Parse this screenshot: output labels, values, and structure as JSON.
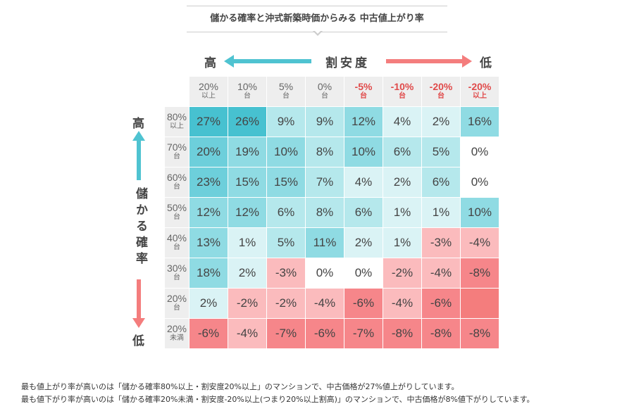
{
  "title": "儲かる確率と沖式新築時価からみる 中古値上がり率",
  "x_axis": {
    "label": "割安度",
    "high": "高",
    "low": "低"
  },
  "y_axis": {
    "label": "儲かる確率",
    "high": "高",
    "low": "低"
  },
  "colors": {
    "teal": "#4fc3d1",
    "red": "#f47d7d"
  },
  "chart_data": {
    "type": "heatmap",
    "title": "儲かる確率と沖式新築時価からみる 中古値上がり率",
    "columns": [
      {
        "main": "20%",
        "sub": "以上",
        "neg": false
      },
      {
        "main": "10%",
        "sub": "台",
        "neg": false
      },
      {
        "main": "5%",
        "sub": "台",
        "neg": false
      },
      {
        "main": "0%",
        "sub": "台",
        "neg": false
      },
      {
        "main": "-5%",
        "sub": "台",
        "neg": true
      },
      {
        "main": "-10%",
        "sub": "台",
        "neg": true
      },
      {
        "main": "-20%",
        "sub": "台",
        "neg": true
      },
      {
        "main": "-20%",
        "sub": "以上",
        "neg": true
      }
    ],
    "rows": [
      {
        "main": "80%",
        "sub": "以上"
      },
      {
        "main": "70%",
        "sub": "台"
      },
      {
        "main": "60%",
        "sub": "台"
      },
      {
        "main": "50%",
        "sub": "台"
      },
      {
        "main": "40%",
        "sub": "台"
      },
      {
        "main": "30%",
        "sub": "台"
      },
      {
        "main": "20%",
        "sub": "台"
      },
      {
        "main": "20%",
        "sub": "未満"
      }
    ],
    "values": [
      [
        27,
        26,
        9,
        9,
        12,
        4,
        2,
        16
      ],
      [
        20,
        19,
        10,
        8,
        10,
        6,
        5,
        0
      ],
      [
        23,
        15,
        15,
        7,
        4,
        2,
        6,
        0
      ],
      [
        12,
        12,
        6,
        8,
        6,
        1,
        1,
        10
      ],
      [
        13,
        1,
        5,
        11,
        2,
        1,
        -3,
        -4
      ],
      [
        18,
        2,
        -3,
        0,
        0,
        -2,
        -4,
        -8
      ],
      [
        2,
        -2,
        -2,
        -4,
        -6,
        -4,
        -6,
        null
      ],
      [
        -6,
        -4,
        -7,
        -6,
        -7,
        -8,
        -8,
        -8
      ]
    ],
    "unit": "%"
  },
  "notes": [
    "最も値上がり率が高いのは「儲かる確率80%以上・割安度20%以上」のマンションで、中古価格が27%値上がりしています。",
    "最も値下がり率が高いのは「儲かる確率20%未満・割安度-20%以上(つまり20%以上割高)」のマンションで、中古価格が8%値下がりしています。"
  ]
}
